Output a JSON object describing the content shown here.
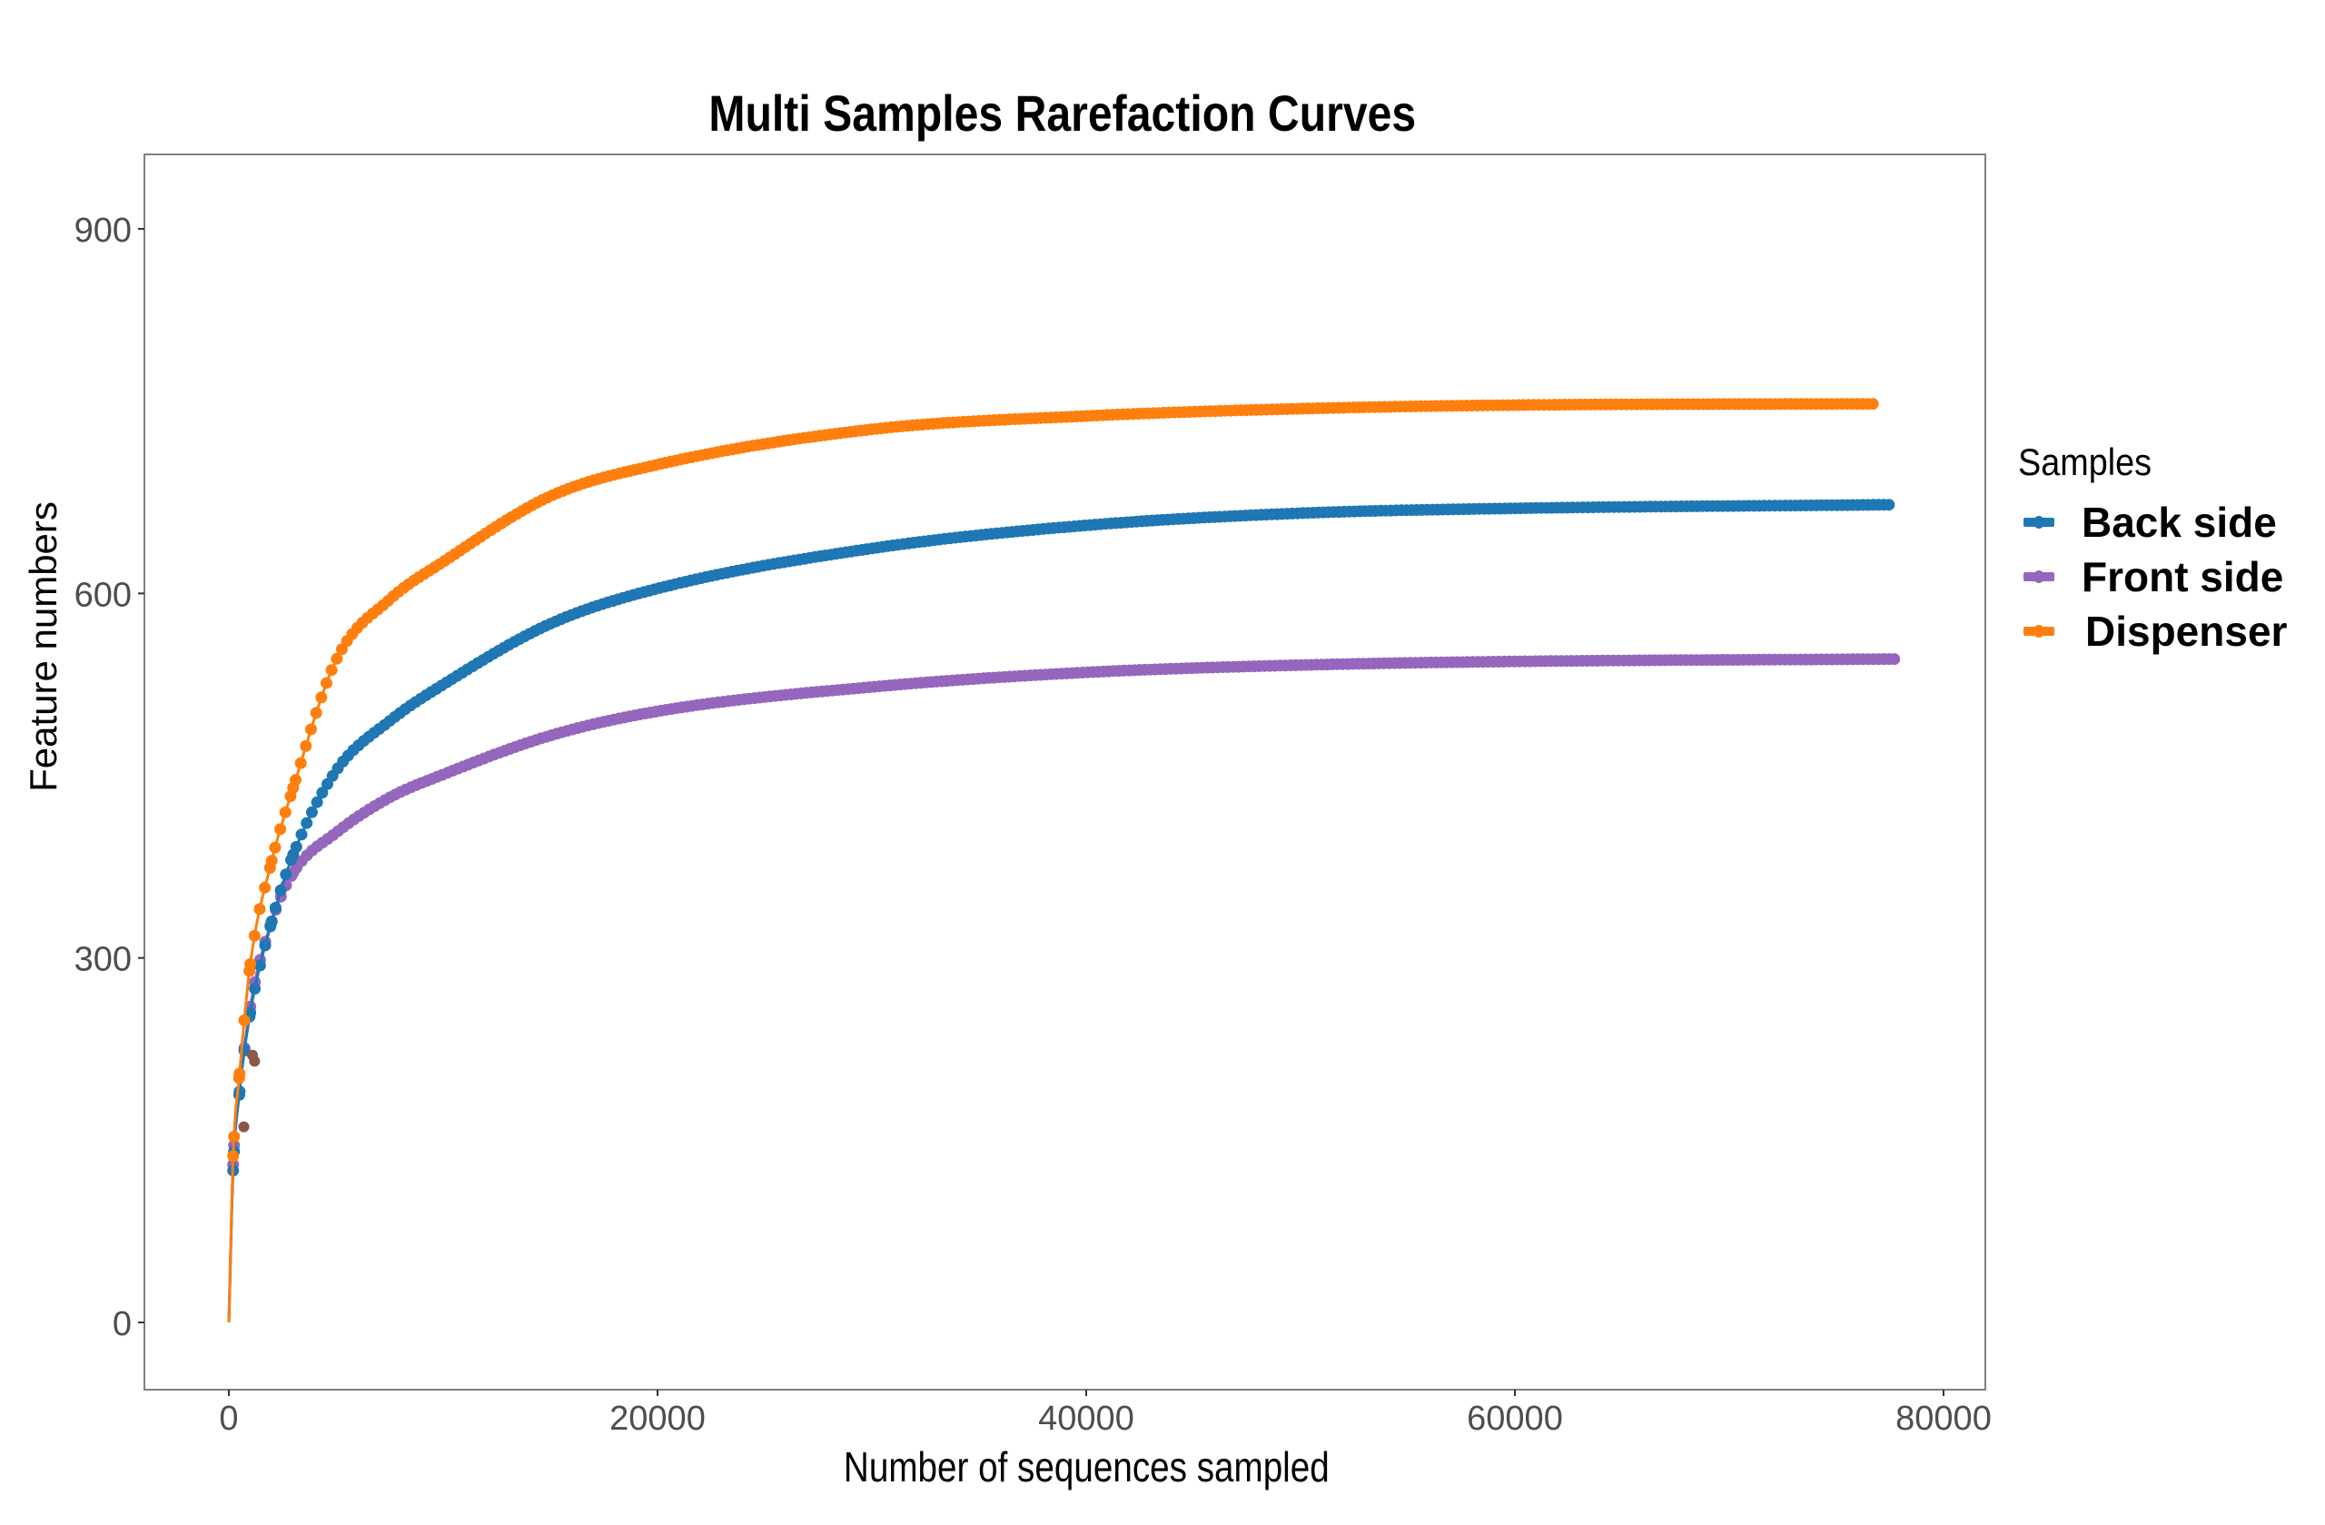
{
  "chart_data": {
    "type": "line",
    "title": "Multi Samples Rarefaction Curves",
    "xlabel": "Number of sequences sampled",
    "ylabel": "Feature numbers",
    "xlim": [
      -4000,
      80000
    ],
    "ylim": [
      -60,
      960
    ],
    "x_ticks": [
      0,
      20000,
      40000,
      60000,
      80000
    ],
    "x_tick_labels": [
      "0",
      "20000",
      "40000",
      "60000",
      "80000"
    ],
    "y_ticks": [
      0,
      300,
      600,
      900
    ],
    "y_tick_labels": [
      "0",
      "300",
      "600",
      "900"
    ],
    "grid": false,
    "legend": {
      "title": "Samples",
      "position": "right"
    },
    "series": [
      {
        "name": "Back side",
        "color": "#1f77b4",
        "x": [
          0,
          200,
          500,
          1000,
          2000,
          3000,
          5000,
          7500,
          10000,
          15000,
          20000,
          30000,
          40000,
          50000,
          60000,
          77450
        ],
        "y": [
          0,
          125,
          190,
          255,
          330,
          385,
          454,
          495,
          525,
          575,
          604,
          637,
          656,
          666,
          670,
          673
        ]
      },
      {
        "name": "Front side",
        "color": "#9467bd",
        "x": [
          0,
          200,
          500,
          1000,
          2000,
          3000,
          5000,
          7500,
          10000,
          15000,
          20000,
          30000,
          40000,
          50000,
          60000,
          77700
        ],
        "y": [
          0,
          130,
          190,
          260,
          330,
          370,
          403,
          432,
          451,
          483,
          503,
          523,
          535,
          541,
          544,
          546
        ]
      },
      {
        "name": "Dispenser",
        "color": "#ff7f0e",
        "x": [
          0,
          200,
          500,
          1000,
          2000,
          3000,
          5000,
          7500,
          10000,
          15000,
          20000,
          30000,
          40000,
          50000,
          60000,
          76700
        ],
        "y": [
          0,
          137,
          205,
          295,
          380,
          440,
          545,
          595,
          626,
          680,
          706,
          735,
          746,
          752,
          755,
          756
        ]
      }
    ],
    "extra_points": {
      "color": "#8c564b",
      "x": [
        700,
        1100,
        1200
      ],
      "y": [
        161,
        220,
        215
      ]
    }
  }
}
